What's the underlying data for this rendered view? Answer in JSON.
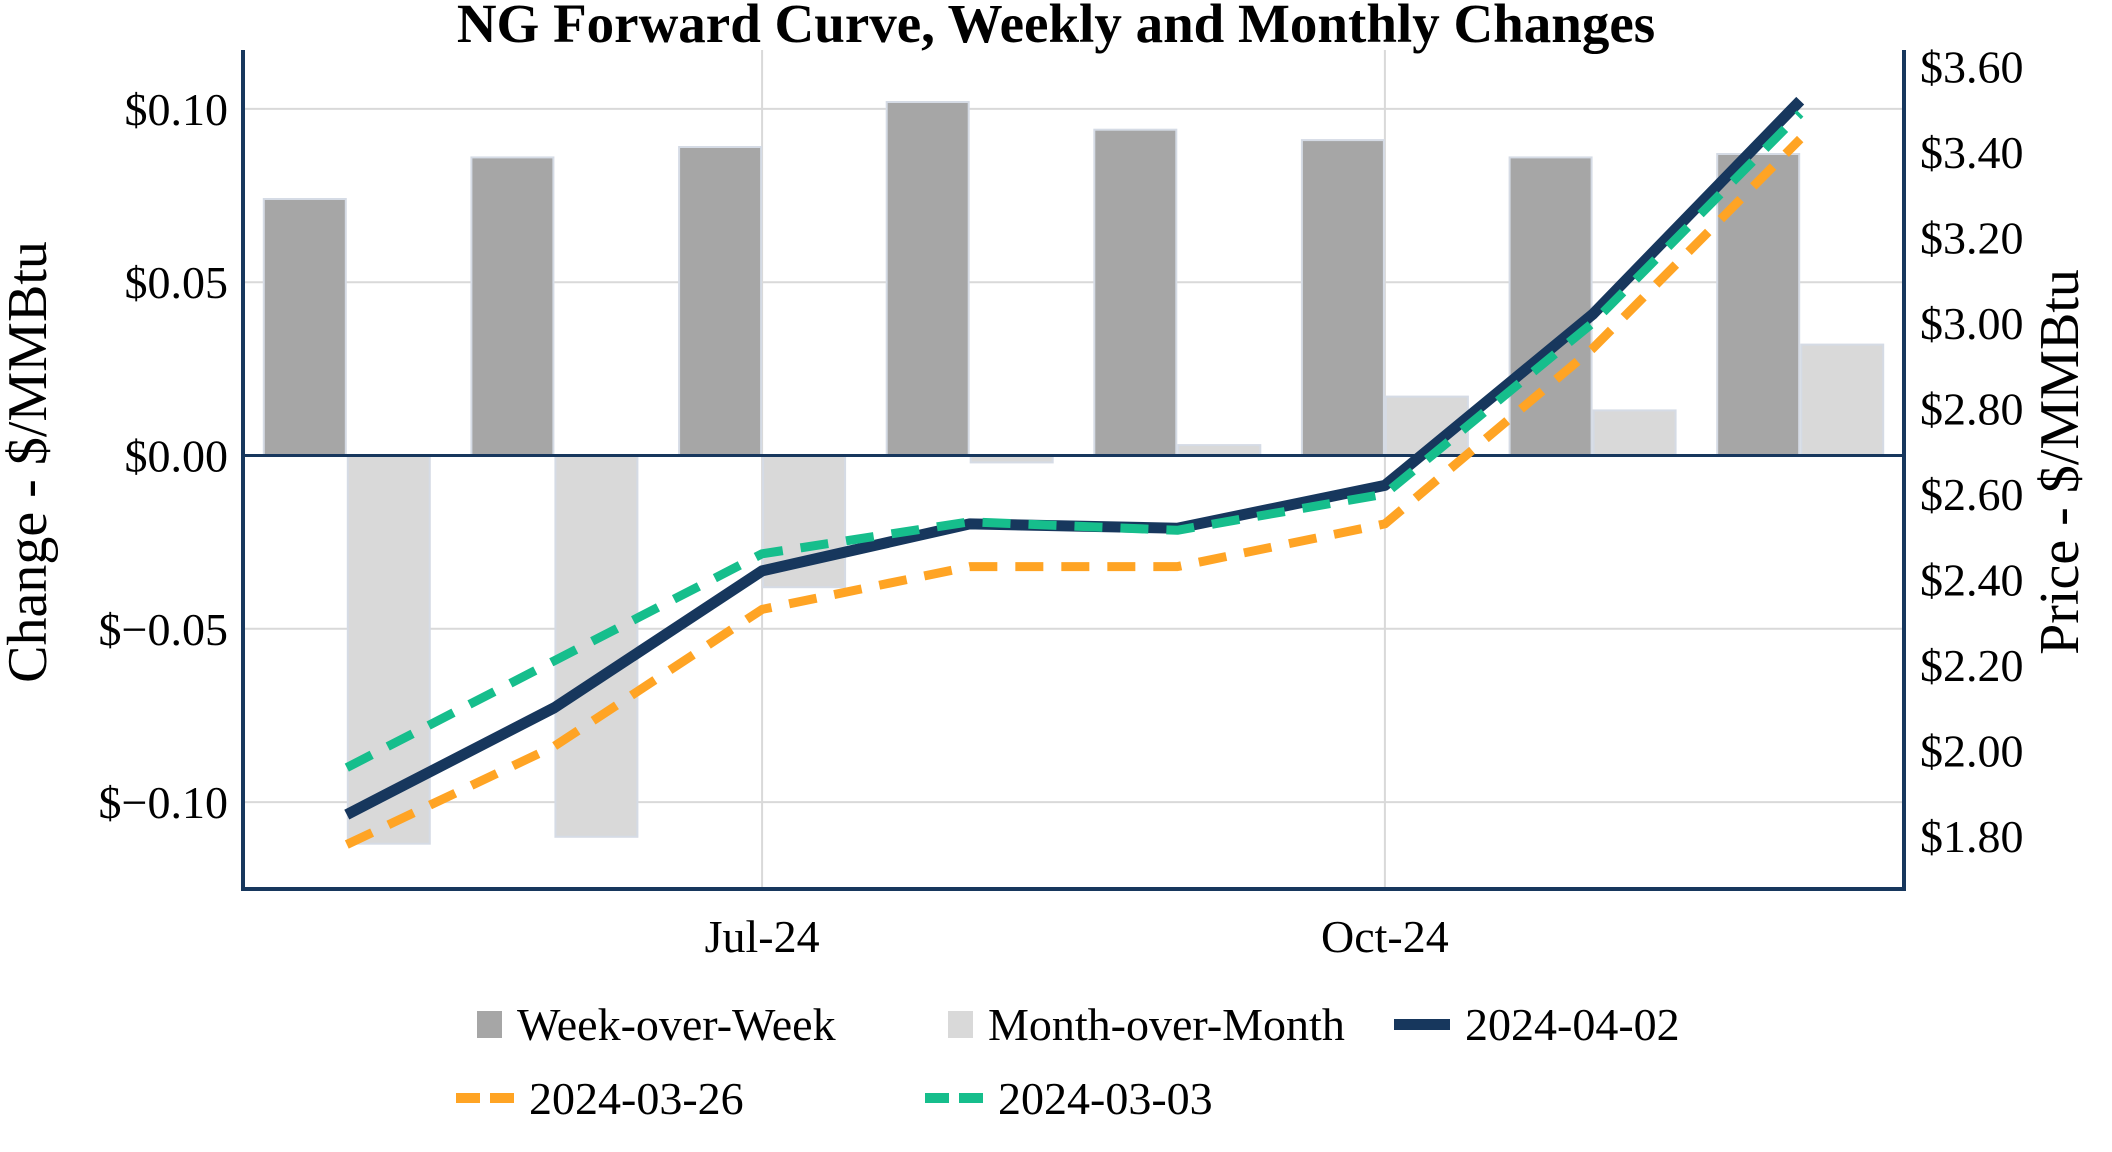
{
  "title": "NG Forward Curve, Weekly and Monthly Changes",
  "colors": {
    "axis": "#17375D",
    "gridline": "#D9D9D9",
    "bar_edge": "#D5DBE5",
    "background": "#FFFFFF",
    "text": "#000000"
  },
  "legend": {
    "row1": [
      "Week-over-Week",
      "Month-over-Month",
      "2024-04-02"
    ],
    "row2": [
      "2024-03-26",
      "2024-03-03"
    ]
  },
  "chart_data": {
    "type": "combo-bar-line",
    "categories": [
      "",
      "",
      "Jul-24",
      "",
      "",
      "Oct-24",
      "",
      ""
    ],
    "x_ticks": [
      {
        "index": 2,
        "label": "Jul-24"
      },
      {
        "index": 5,
        "label": "Oct-24"
      }
    ],
    "left_axis": {
      "label": "Change - $/MMBtu",
      "ticks": [
        0.1,
        0.05,
        0.0,
        -0.05,
        -0.1
      ],
      "tick_labels": [
        "$0.10",
        "$0.05",
        "$0.00",
        "$−0.05",
        "$−0.10"
      ],
      "range": [
        -0.126,
        0.117
      ],
      "grid": true
    },
    "right_axis": {
      "label": "Price - $/MMBtu",
      "ticks": [
        3.6,
        3.4,
        3.2,
        3.0,
        2.8,
        2.6,
        2.4,
        2.2,
        2.0,
        1.8
      ],
      "tick_labels": [
        "$3.60",
        "$3.40",
        "$3.20",
        "$3.00",
        "$2.80",
        "$2.60",
        "$2.40",
        "$2.20",
        "$2.00",
        "$1.80"
      ],
      "range": [
        1.67,
        3.65
      ],
      "grid": false
    },
    "bar_series": [
      {
        "name": "Week-over-Week",
        "axis": "left",
        "color": "#A6A6A6",
        "values": [
          0.074,
          0.086,
          0.089,
          0.102,
          0.094,
          0.091,
          0.086,
          0.087
        ]
      },
      {
        "name": "Month-over-Month",
        "axis": "left",
        "color": "#D9D9D9",
        "values": [
          -0.112,
          -0.11,
          -0.038,
          -0.002,
          0.003,
          0.017,
          0.013,
          0.032
        ]
      }
    ],
    "line_series": [
      {
        "name": "2024-04-02",
        "axis": "right",
        "color": "#17375D",
        "style": "solid",
        "values": [
          1.85,
          2.1,
          2.42,
          2.53,
          2.52,
          2.62,
          3.02,
          3.52
        ]
      },
      {
        "name": "2024-03-26",
        "axis": "right",
        "color": "#FFA424",
        "style": "dashed",
        "values": [
          1.78,
          2.01,
          2.33,
          2.43,
          2.43,
          2.53,
          2.94,
          3.43
        ]
      },
      {
        "name": "2024-03-03",
        "axis": "right",
        "color": "#16BE8C",
        "style": "dashed",
        "values": [
          1.96,
          2.21,
          2.46,
          2.535,
          2.515,
          2.6,
          3.0,
          3.49
        ]
      }
    ],
    "legend_position": "bottom"
  }
}
